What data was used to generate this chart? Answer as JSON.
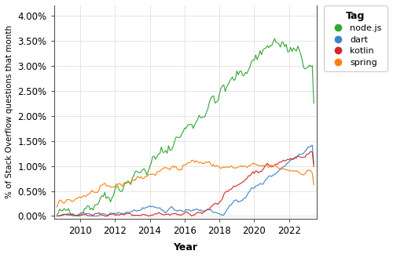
{
  "title": "",
  "xlabel": "Year",
  "ylabel": "% of Stack Overflow questions that month",
  "xlim": [
    2008.5,
    2023.6
  ],
  "ylim": [
    -0.0005,
    0.042
  ],
  "yticks": [
    0.0,
    0.005,
    0.01,
    0.015,
    0.02,
    0.025,
    0.03,
    0.035,
    0.04
  ],
  "ytick_labels": [
    "0.00%",
    "0.50%",
    "1.00%",
    "1.50%",
    "2.00%",
    "2.50%",
    "3.00%",
    "3.50%",
    "4.00%"
  ],
  "xticks": [
    2010,
    2012,
    2014,
    2016,
    2018,
    2020,
    2022
  ],
  "colors": {
    "node": "#33a532",
    "dart": "#3d84c6",
    "kotlin": "#d62728",
    "spring": "#ff7f0e"
  },
  "legend_title": "Tag",
  "legend_entries": [
    "node.js",
    "dart",
    "kotlin",
    "spring"
  ],
  "background_color": "#ffffff",
  "grid_color": "#e0e0e0"
}
